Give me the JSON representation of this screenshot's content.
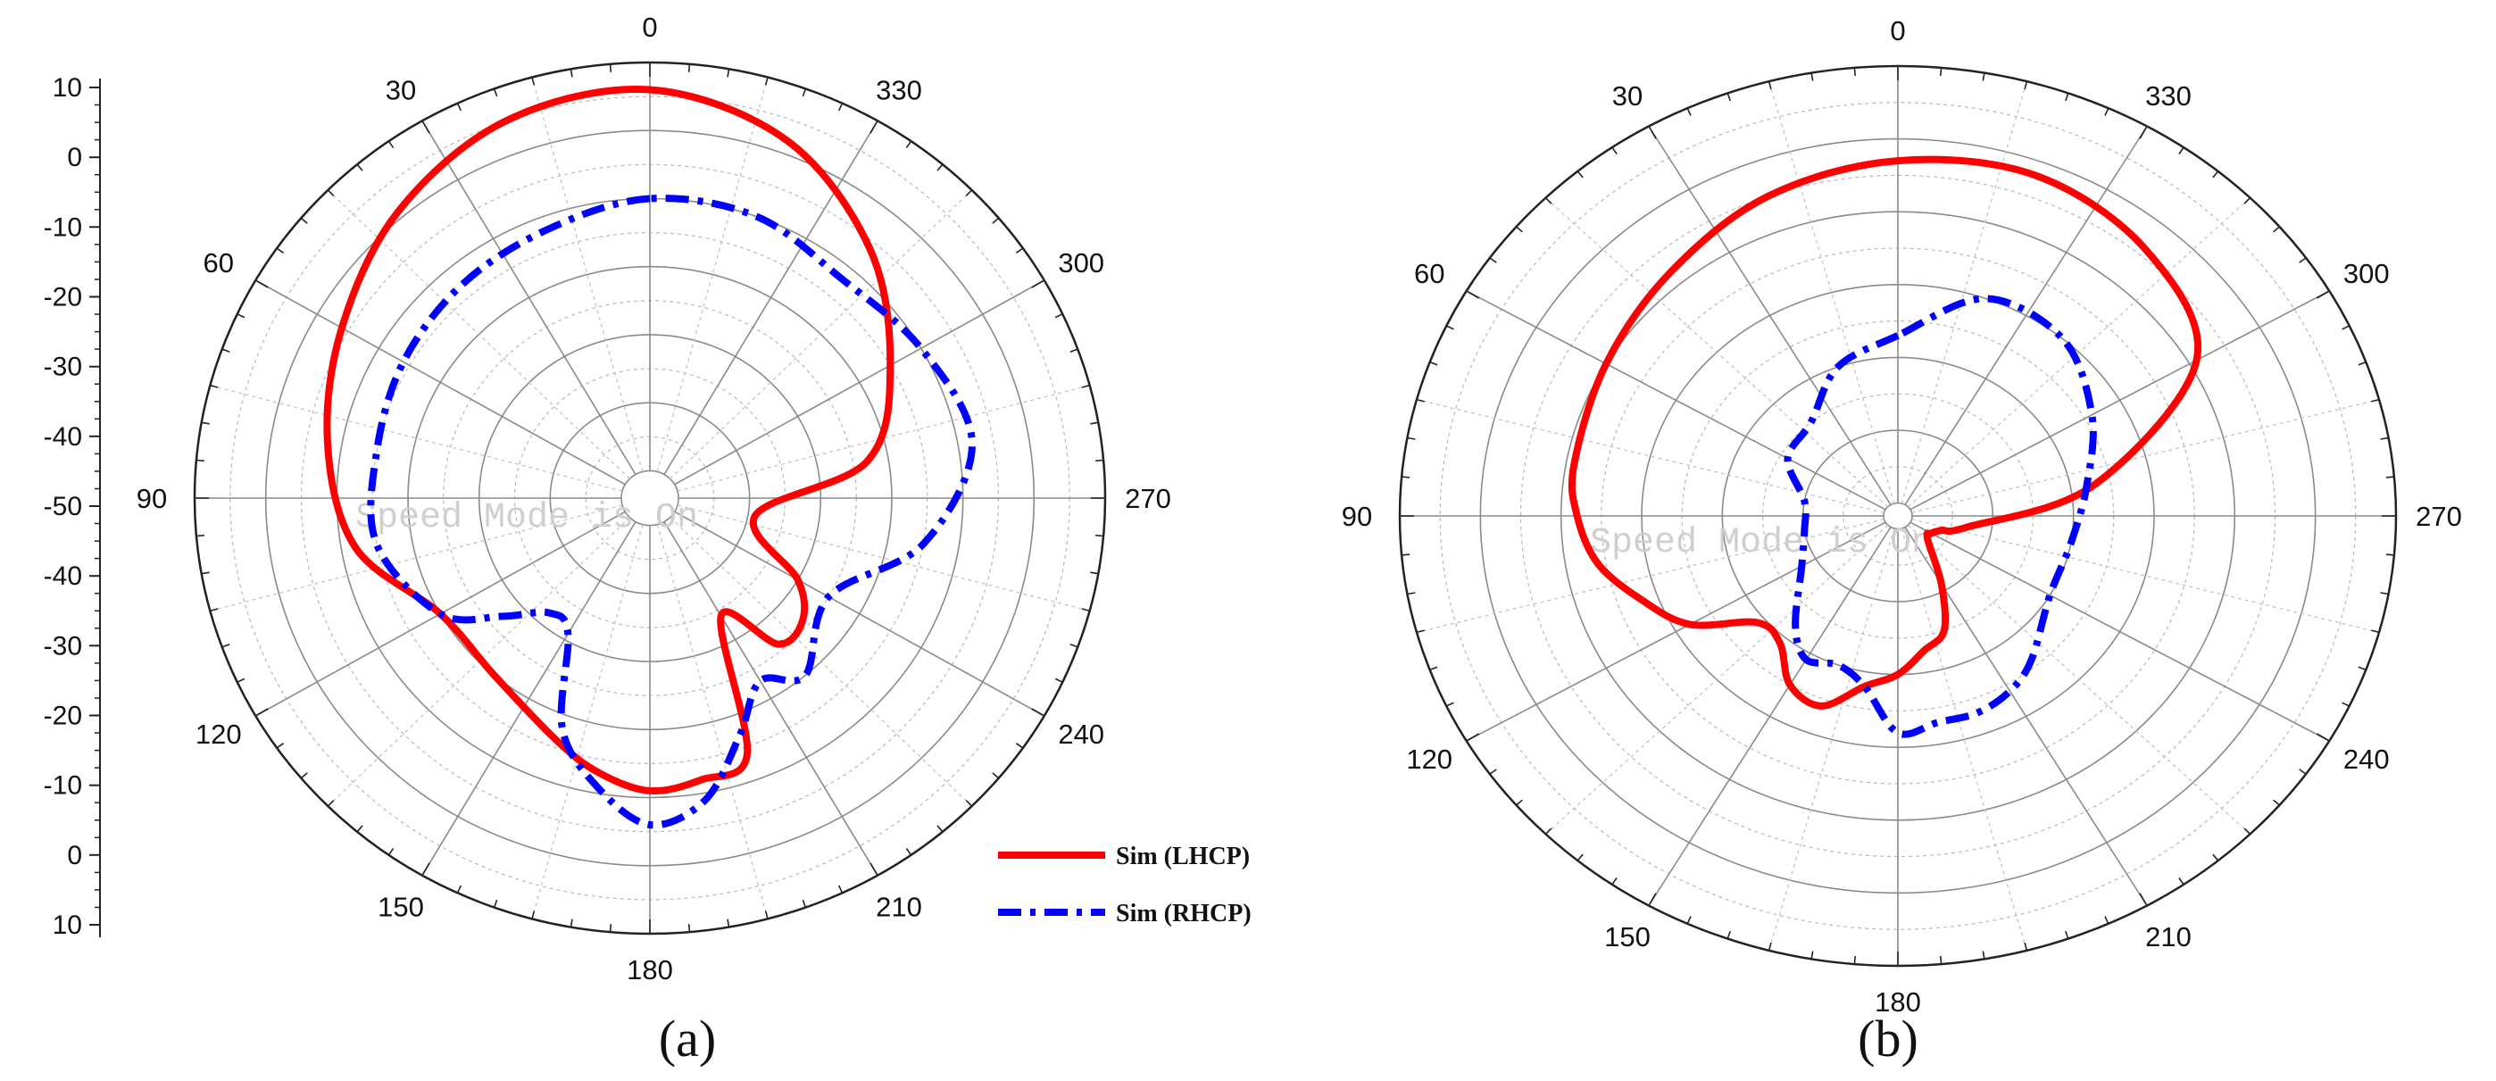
{
  "chart_data": [
    {
      "panel_label": "(a)",
      "type": "polar-line",
      "angular_axis": {
        "direction": "counter-clockwise",
        "zero": "top",
        "labels": [
          "0",
          "30",
          "60",
          "90",
          "120",
          "150",
          "180",
          "210",
          "240",
          "270",
          "300",
          "330"
        ]
      },
      "radial_axis": {
        "range_db": [
          -50,
          10
        ],
        "tick_labels": [
          "10",
          "0",
          "-10",
          "-20",
          "-30",
          "-40",
          "-50",
          "-40",
          "-30",
          "-20",
          "-10",
          "0",
          "10"
        ]
      },
      "watermark": "Speed Mode is On",
      "legend": {
        "placement": "bottom-right",
        "entries": [
          "Sim (LHCP)",
          "Sim (RHCP)"
        ]
      },
      "series": [
        {
          "name": "Sim (LHCP)",
          "color": "#ff0000",
          "style": "solid",
          "theta": [
            0,
            20,
            40,
            60,
            80,
            100,
            120,
            140,
            160,
            170,
            180,
            190,
            200,
            210,
            220,
            230,
            240,
            260,
            280,
            300,
            320,
            340
          ],
          "r_db": [
            6,
            5,
            1,
            -4,
            -8,
            -12,
            -20,
            -20,
            -16,
            -13,
            -11,
            -12,
            -14,
            -34,
            -26,
            -26,
            -30,
            -39,
            -23,
            -15,
            -6,
            2
          ]
        },
        {
          "name": "Sim (RHCP)",
          "color": "#0000ff",
          "style": "dash-dot",
          "theta": [
            0,
            20,
            40,
            60,
            80,
            100,
            120,
            130,
            140,
            150,
            160,
            170,
            180,
            190,
            200,
            210,
            220,
            240,
            260,
            280,
            300,
            320,
            340
          ],
          "r_db": [
            -10,
            -12,
            -13,
            -14,
            -15,
            -15,
            -20,
            -27,
            -32,
            -31,
            -18,
            -11,
            -6,
            -9,
            -17,
            -23,
            -20,
            -25,
            -15,
            -8,
            -10,
            -12,
            -10
          ]
        }
      ]
    },
    {
      "panel_label": "(b)",
      "type": "polar-line",
      "angular_axis": {
        "direction": "counter-clockwise",
        "zero": "top",
        "labels": [
          "0",
          "30",
          "60",
          "90",
          "120",
          "150",
          "180",
          "210",
          "240",
          "270",
          "300",
          "330"
        ]
      },
      "radial_axis": {
        "range_db": [
          -50,
          10
        ]
      },
      "watermark": "Speed Mode is On",
      "series": [
        {
          "name": "Sim (LHCP)",
          "color": "#ff0000",
          "style": "solid",
          "theta": [
            0,
            20,
            40,
            60,
            80,
            90,
            100,
            110,
            120,
            130,
            140,
            150,
            160,
            170,
            180,
            190,
            200,
            210,
            230,
            240,
            250,
            260,
            280,
            300,
            320,
            340
          ],
          "r_db": [
            -3,
            -5,
            -8,
            -10,
            -11,
            -12,
            -14,
            -18,
            -22,
            -29,
            -29,
            -25,
            -24,
            -28,
            -30,
            -33,
            -35,
            -41,
            -47,
            -47,
            -46,
            -43,
            -27,
            -9,
            -4,
            -2
          ]
        },
        {
          "name": "Sim (RHCP)",
          "color": "#0000ff",
          "style": "dash-dot",
          "theta": [
            0,
            20,
            40,
            60,
            80,
            100,
            120,
            140,
            150,
            160,
            170,
            180,
            190,
            200,
            210,
            220,
            240,
            260,
            280,
            300,
            320,
            340
          ],
          "r_db": [
            -27,
            -30,
            -35,
            -36,
            -40,
            -40,
            -38,
            -32,
            -29,
            -30,
            -28,
            -22,
            -23,
            -23,
            -24,
            -26,
            -30,
            -30,
            -28,
            -24,
            -20,
            -20
          ]
        }
      ]
    }
  ]
}
